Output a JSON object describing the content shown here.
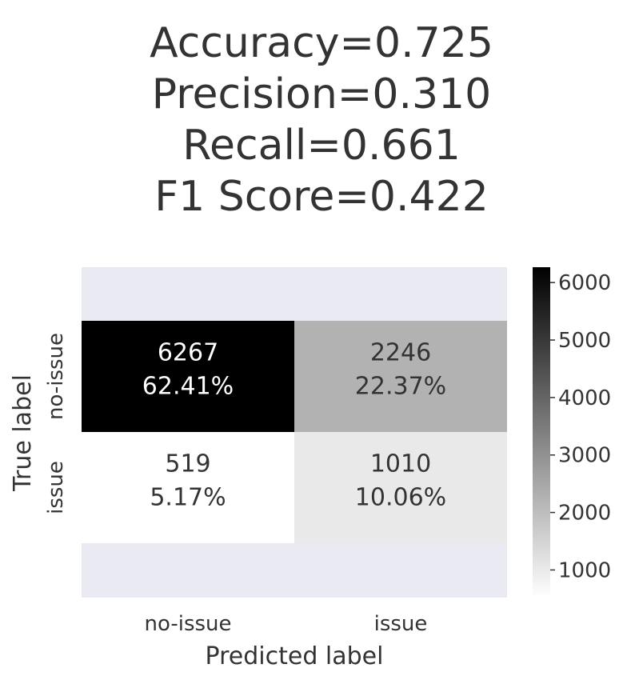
{
  "title_lines": [
    "Accuracy=0.725",
    "Precision=0.310",
    "Recall=0.661",
    "F1 Score=0.422"
  ],
  "chart_data": {
    "type": "heatmap",
    "xlabel": "Predicted label",
    "ylabel": "True label",
    "x_categories": [
      "no-issue",
      "issue"
    ],
    "y_categories": [
      "no-issue",
      "issue"
    ],
    "values": [
      [
        6267,
        2246
      ],
      [
        519,
        1010
      ]
    ],
    "cell_labels": [
      [
        "6267\n62.41%",
        "2246\n22.37%"
      ],
      [
        "519\n5.17%",
        "1010\n10.06%"
      ]
    ],
    "colorbar": {
      "colormap": "binary",
      "range": [
        519,
        6267
      ],
      "ticks": [
        1000,
        2000,
        3000,
        4000,
        5000,
        6000
      ]
    },
    "colors": {
      "axes_background": "#eaeaf2",
      "text_dark": "#333333"
    }
  }
}
